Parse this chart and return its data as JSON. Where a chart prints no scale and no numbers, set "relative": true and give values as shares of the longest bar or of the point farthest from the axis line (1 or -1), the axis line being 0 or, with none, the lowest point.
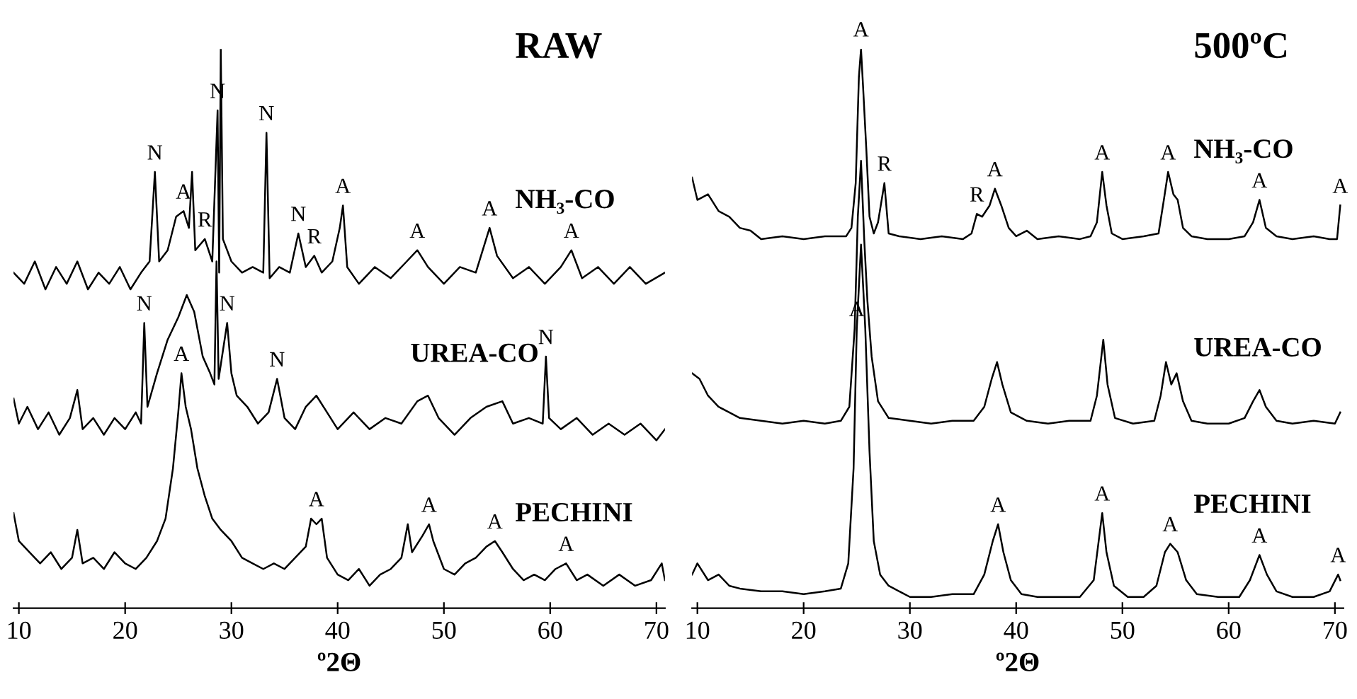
{
  "chart_data": [
    {
      "type": "line",
      "relative": true,
      "title": "RAW",
      "xlabel": "º2Θ",
      "xlim": [
        9.5,
        70.8
      ],
      "xticks": [
        10,
        20,
        30,
        40,
        50,
        60,
        70
      ],
      "series": [
        {
          "name": "NH₃-CO",
          "color": "#000000",
          "x": [
            9.5,
            10.5,
            11.5,
            12.5,
            13.5,
            14.5,
            15.5,
            16.5,
            17.5,
            18.5,
            19.5,
            20.5,
            21.5,
            22.3,
            22.8,
            23.2,
            24.0,
            24.8,
            25.5,
            26.0,
            26.3,
            26.6,
            27.5,
            28.2,
            28.7,
            28.85,
            29.0,
            29.2,
            30.0,
            31.0,
            32.0,
            33.0,
            33.3,
            33.6,
            34.5,
            35.5,
            36.3,
            37.0,
            37.8,
            38.5,
            39.5,
            40.2,
            40.5,
            40.9,
            42.0,
            43.5,
            45.0,
            46.5,
            47.5,
            48.5,
            50.0,
            51.5,
            53.0,
            54.3,
            55.0,
            56.5,
            58.0,
            59.5,
            61.0,
            62.0,
            63.0,
            64.5,
            66.0,
            67.5,
            69.0,
            70.8
          ],
          "values": [
            0.6,
            0.58,
            0.62,
            0.57,
            0.61,
            0.58,
            0.62,
            0.57,
            0.6,
            0.58,
            0.61,
            0.57,
            0.6,
            0.62,
            0.78,
            0.62,
            0.64,
            0.7,
            0.71,
            0.68,
            0.78,
            0.64,
            0.66,
            0.62,
            0.89,
            0.6,
            1.0,
            0.66,
            0.62,
            0.6,
            0.61,
            0.6,
            0.85,
            0.59,
            0.61,
            0.6,
            0.67,
            0.61,
            0.63,
            0.6,
            0.62,
            0.68,
            0.72,
            0.61,
            0.58,
            0.61,
            0.59,
            0.62,
            0.64,
            0.61,
            0.58,
            0.61,
            0.6,
            0.68,
            0.63,
            0.59,
            0.61,
            0.58,
            0.61,
            0.64,
            0.59,
            0.61,
            0.58,
            0.61,
            0.58,
            0.6
          ]
        },
        {
          "name": "UREA-CO",
          "color": "#000000",
          "x": [
            9.5,
            10.0,
            10.8,
            11.8,
            12.8,
            13.8,
            14.8,
            15.5,
            16.0,
            17.0,
            18.0,
            19.0,
            20.0,
            21.0,
            21.5,
            21.8,
            22.1,
            23.0,
            24.0,
            25.0,
            25.8,
            26.5,
            27.3,
            28.0,
            28.4,
            28.6,
            28.8,
            29.6,
            30.0,
            30.5,
            31.5,
            32.5,
            33.5,
            34.3,
            35.0,
            36.0,
            37.0,
            38.0,
            39.0,
            40.0,
            41.5,
            43.0,
            44.5,
            46.0,
            47.5,
            48.5,
            49.5,
            51.0,
            52.5,
            54.0,
            55.5,
            56.5,
            58.0,
            59.3,
            59.6,
            59.9,
            61.0,
            62.5,
            64.0,
            65.5,
            67.0,
            68.5,
            70.0,
            70.8
          ],
          "values": [
            0.375,
            0.33,
            0.36,
            0.32,
            0.35,
            0.31,
            0.34,
            0.39,
            0.32,
            0.34,
            0.31,
            0.34,
            0.32,
            0.35,
            0.33,
            0.51,
            0.36,
            0.42,
            0.48,
            0.52,
            0.56,
            0.53,
            0.45,
            0.42,
            0.4,
            0.62,
            0.41,
            0.51,
            0.42,
            0.38,
            0.36,
            0.33,
            0.35,
            0.41,
            0.34,
            0.32,
            0.36,
            0.38,
            0.35,
            0.32,
            0.35,
            0.32,
            0.34,
            0.33,
            0.37,
            0.38,
            0.34,
            0.31,
            0.34,
            0.36,
            0.37,
            0.33,
            0.34,
            0.33,
            0.45,
            0.34,
            0.32,
            0.34,
            0.31,
            0.33,
            0.31,
            0.33,
            0.3,
            0.32
          ]
        },
        {
          "name": "PECHINI",
          "color": "#000000",
          "x": [
            9.5,
            10.0,
            11.0,
            12.0,
            13.0,
            14.0,
            15.0,
            15.5,
            16.0,
            17.0,
            18.0,
            19.0,
            20.0,
            21.0,
            22.0,
            23.0,
            23.8,
            24.5,
            25.0,
            25.3,
            25.7,
            26.2,
            26.8,
            27.5,
            28.2,
            29.0,
            30.0,
            31.0,
            32.0,
            33.0,
            34.0,
            35.0,
            36.0,
            37.0,
            37.5,
            38.0,
            38.5,
            39.0,
            40.0,
            41.0,
            42.0,
            43.0,
            44.0,
            45.0,
            46.0,
            46.6,
            47.0,
            48.0,
            48.6,
            49.0,
            50.0,
            51.0,
            52.0,
            53.0,
            54.0,
            54.8,
            55.5,
            56.5,
            57.5,
            58.5,
            59.5,
            60.5,
            61.5,
            62.5,
            63.5,
            65.0,
            66.5,
            68.0,
            69.5,
            70.5,
            70.8
          ],
          "values": [
            0.17,
            0.12,
            0.1,
            0.08,
            0.1,
            0.07,
            0.09,
            0.14,
            0.08,
            0.09,
            0.07,
            0.1,
            0.08,
            0.07,
            0.09,
            0.12,
            0.16,
            0.25,
            0.35,
            0.42,
            0.36,
            0.32,
            0.25,
            0.2,
            0.16,
            0.14,
            0.12,
            0.09,
            0.08,
            0.07,
            0.08,
            0.07,
            0.09,
            0.11,
            0.16,
            0.15,
            0.16,
            0.09,
            0.06,
            0.05,
            0.07,
            0.04,
            0.06,
            0.07,
            0.09,
            0.15,
            0.1,
            0.13,
            0.15,
            0.12,
            0.07,
            0.06,
            0.08,
            0.09,
            0.11,
            0.12,
            0.1,
            0.07,
            0.05,
            0.06,
            0.05,
            0.07,
            0.08,
            0.05,
            0.06,
            0.04,
            0.06,
            0.04,
            0.05,
            0.08,
            0.05
          ]
        }
      ],
      "annotations": [
        {
          "text": "N",
          "x": 22.8,
          "y": 0.78
        },
        {
          "text": "A",
          "x": 25.5,
          "y": 0.71
        },
        {
          "text": "R",
          "x": 27.5,
          "y": 0.66
        },
        {
          "text": "N",
          "x": 28.7,
          "y": 0.89
        },
        {
          "text": "N",
          "x": 33.3,
          "y": 0.85
        },
        {
          "text": "N",
          "x": 36.3,
          "y": 0.67
        },
        {
          "text": "R",
          "x": 37.8,
          "y": 0.63
        },
        {
          "text": "A",
          "x": 40.5,
          "y": 0.72
        },
        {
          "text": "A",
          "x": 47.5,
          "y": 0.64
        },
        {
          "text": "A",
          "x": 54.3,
          "y": 0.68
        },
        {
          "text": "A",
          "x": 62.0,
          "y": 0.64
        },
        {
          "text": "N",
          "x": 21.8,
          "y": 0.51
        },
        {
          "text": "N",
          "x": 29.6,
          "y": 0.51
        },
        {
          "text": "N",
          "x": 34.3,
          "y": 0.41
        },
        {
          "text": "N",
          "x": 59.6,
          "y": 0.45
        },
        {
          "text": "A",
          "x": 25.3,
          "y": 0.42
        },
        {
          "text": "A",
          "x": 38.0,
          "y": 0.16
        },
        {
          "text": "A",
          "x": 48.6,
          "y": 0.15
        },
        {
          "text": "A",
          "x": 54.8,
          "y": 0.12
        },
        {
          "text": "A",
          "x": 61.5,
          "y": 0.08
        }
      ]
    },
    {
      "type": "line",
      "relative": true,
      "title": "500ºC",
      "xlabel": "º2Θ",
      "xlim": [
        9.5,
        70.8
      ],
      "xticks": [
        10,
        20,
        30,
        40,
        50,
        60,
        70
      ],
      "series": [
        {
          "name": "NH₃-CO",
          "color": "#000000",
          "x": [
            9.5,
            10.0,
            11.0,
            12.0,
            13.0,
            14.0,
            15.0,
            16.0,
            18.0,
            20.0,
            22.0,
            24.0,
            24.5,
            24.9,
            25.2,
            25.4,
            25.6,
            25.9,
            26.2,
            26.6,
            27.0,
            27.6,
            28.0,
            29.0,
            31.0,
            33.0,
            35.0,
            35.8,
            36.3,
            36.8,
            37.5,
            38.0,
            38.6,
            39.3,
            40.0,
            41.0,
            42.0,
            44.0,
            46.0,
            47.0,
            47.6,
            48.1,
            48.5,
            49.0,
            50.0,
            52.0,
            53.4,
            53.9,
            54.3,
            54.8,
            55.2,
            55.7,
            56.5,
            58.0,
            60.0,
            61.5,
            62.3,
            62.9,
            63.5,
            64.5,
            66.0,
            68.0,
            69.5,
            70.2,
            70.5
          ],
          "values": [
            0.77,
            0.73,
            0.74,
            0.71,
            0.7,
            0.68,
            0.675,
            0.66,
            0.665,
            0.66,
            0.665,
            0.665,
            0.68,
            0.76,
            0.95,
            1.0,
            0.93,
            0.82,
            0.7,
            0.67,
            0.69,
            0.76,
            0.67,
            0.665,
            0.66,
            0.665,
            0.66,
            0.67,
            0.705,
            0.7,
            0.72,
            0.75,
            0.72,
            0.68,
            0.665,
            0.675,
            0.66,
            0.665,
            0.66,
            0.665,
            0.69,
            0.78,
            0.72,
            0.67,
            0.66,
            0.665,
            0.67,
            0.73,
            0.78,
            0.74,
            0.73,
            0.68,
            0.665,
            0.66,
            0.66,
            0.665,
            0.69,
            0.73,
            0.68,
            0.665,
            0.66,
            0.665,
            0.66,
            0.66,
            0.72
          ]
        },
        {
          "name": "UREA-CO",
          "color": "#000000",
          "x": [
            9.5,
            10.2,
            11.0,
            12.0,
            13.0,
            14.0,
            16.0,
            18.0,
            20.0,
            22.0,
            23.5,
            24.3,
            24.8,
            25.1,
            25.4,
            25.7,
            26.0,
            26.4,
            27.0,
            28.0,
            30.0,
            32.0,
            34.0,
            36.0,
            37.0,
            37.7,
            38.2,
            38.7,
            39.5,
            41.0,
            43.0,
            45.0,
            47.0,
            47.6,
            48.2,
            48.6,
            49.3,
            51.0,
            53.0,
            53.6,
            54.1,
            54.6,
            55.1,
            55.7,
            56.5,
            58.0,
            60.0,
            61.5,
            62.3,
            62.9,
            63.5,
            64.5,
            66.0,
            68.0,
            70.0,
            70.5
          ],
          "values": [
            0.42,
            0.41,
            0.38,
            0.36,
            0.35,
            0.34,
            0.335,
            0.33,
            0.335,
            0.33,
            0.335,
            0.36,
            0.5,
            0.7,
            0.8,
            0.66,
            0.55,
            0.45,
            0.37,
            0.34,
            0.335,
            0.33,
            0.335,
            0.335,
            0.36,
            0.41,
            0.44,
            0.4,
            0.35,
            0.335,
            0.33,
            0.335,
            0.335,
            0.38,
            0.48,
            0.4,
            0.34,
            0.33,
            0.335,
            0.38,
            0.44,
            0.4,
            0.42,
            0.37,
            0.335,
            0.33,
            0.33,
            0.34,
            0.37,
            0.39,
            0.36,
            0.335,
            0.33,
            0.335,
            0.33,
            0.35
          ]
        },
        {
          "name": "PECHINI",
          "color": "#000000",
          "x": [
            9.5,
            10.0,
            11.0,
            12.0,
            13.0,
            14.0,
            16.0,
            18.0,
            20.0,
            22.0,
            23.5,
            24.2,
            24.7,
            25.0,
            25.4,
            25.8,
            26.2,
            26.6,
            27.2,
            28.0,
            30.0,
            32.0,
            34.0,
            36.0,
            37.0,
            37.8,
            38.3,
            38.8,
            39.5,
            40.5,
            42.0,
            44.0,
            46.0,
            47.3,
            48.1,
            48.5,
            49.2,
            50.5,
            52.0,
            53.2,
            54.0,
            54.5,
            55.2,
            56.0,
            57.0,
            59.0,
            61.0,
            62.0,
            62.9,
            63.6,
            64.5,
            66.0,
            68.0,
            69.5,
            70.3,
            70.5
          ],
          "values": [
            0.06,
            0.08,
            0.05,
            0.06,
            0.04,
            0.035,
            0.03,
            0.03,
            0.025,
            0.03,
            0.035,
            0.08,
            0.25,
            0.5,
            0.65,
            0.5,
            0.28,
            0.12,
            0.06,
            0.04,
            0.02,
            0.02,
            0.025,
            0.025,
            0.06,
            0.12,
            0.15,
            0.1,
            0.05,
            0.025,
            0.02,
            0.02,
            0.02,
            0.05,
            0.17,
            0.1,
            0.04,
            0.02,
            0.02,
            0.04,
            0.1,
            0.115,
            0.1,
            0.05,
            0.025,
            0.02,
            0.02,
            0.05,
            0.095,
            0.06,
            0.03,
            0.02,
            0.02,
            0.03,
            0.06,
            0.05
          ]
        }
      ],
      "annotations": [
        {
          "text": "A",
          "x": 25.4,
          "y": 1.0
        },
        {
          "text": "R",
          "x": 27.6,
          "y": 0.76
        },
        {
          "text": "R",
          "x": 36.3,
          "y": 0.705
        },
        {
          "text": "A",
          "x": 38.0,
          "y": 0.75
        },
        {
          "text": "A",
          "x": 48.1,
          "y": 0.78
        },
        {
          "text": "A",
          "x": 54.3,
          "y": 0.78
        },
        {
          "text": "A",
          "x": 62.9,
          "y": 0.73
        },
        {
          "text": "A",
          "x": 70.5,
          "y": 0.72
        },
        {
          "text": "A",
          "x": 25.0,
          "y": 0.5
        },
        {
          "text": "A",
          "x": 38.3,
          "y": 0.15
        },
        {
          "text": "A",
          "x": 48.1,
          "y": 0.17
        },
        {
          "text": "A",
          "x": 54.5,
          "y": 0.115
        },
        {
          "text": "A",
          "x": 62.9,
          "y": 0.095
        },
        {
          "text": "A",
          "x": 70.3,
          "y": 0.06
        }
      ]
    }
  ]
}
